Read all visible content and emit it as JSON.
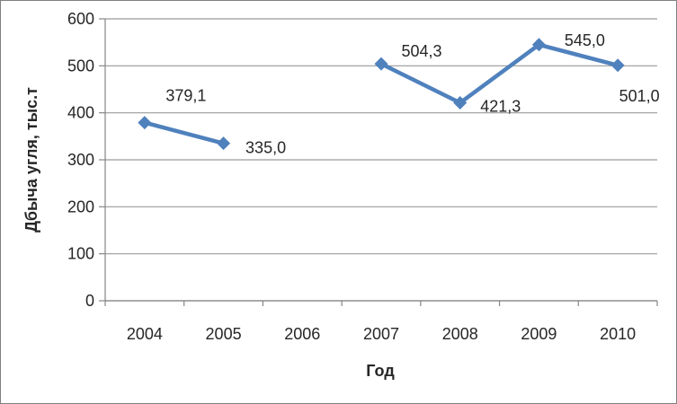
{
  "window": {
    "background": "#ffffff",
    "border_color": "#808080"
  },
  "chart_data": {
    "type": "line",
    "title": "",
    "xlabel": "Год",
    "ylabel": "Дбыча угля, тыс.т",
    "categories": [
      "2004",
      "2005",
      "2006",
      "2007",
      "2008",
      "2009",
      "2010"
    ],
    "series": [
      {
        "color": "#4F81BD",
        "marker": "diamond",
        "values": [
          379.1,
          335.0,
          null,
          504.3,
          421.3,
          545.0,
          501.0
        ],
        "point_labels": [
          "379,1",
          "335,0",
          null,
          "504,3",
          "421,3",
          "545,0",
          "501,0"
        ],
        "label_offsets": [
          [
            46,
            -24
          ],
          [
            47,
            11
          ],
          null,
          [
            45,
            -8
          ],
          [
            45,
            10
          ],
          [
            51,
            1
          ],
          [
            24,
            40
          ]
        ]
      }
    ],
    "ylim": [
      0,
      600
    ],
    "ytick_step": 100,
    "grid": true,
    "legend_position": "none",
    "style": {
      "gridline_color": "#9a9a9a",
      "axis_color": "#868686",
      "text_color": "#262626"
    }
  }
}
